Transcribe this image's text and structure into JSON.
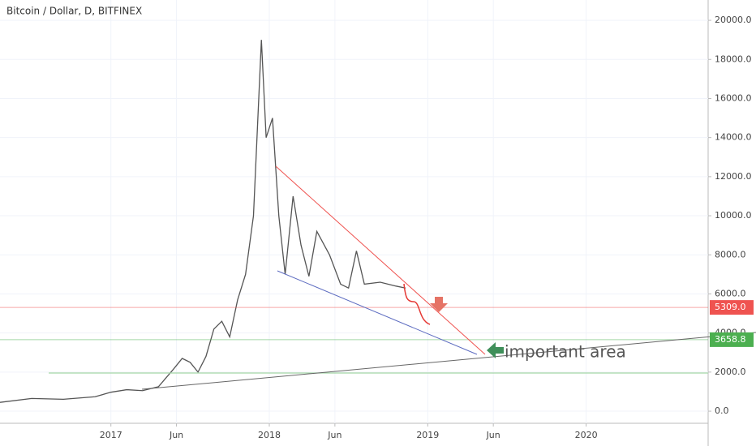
{
  "chart_data": {
    "type": "line",
    "title": "Bitcoin / Dollar, D, BITFINEX",
    "annotation": "important area",
    "color": "#555555",
    "x": [
      2016.3,
      2016.5,
      2016.7,
      2016.9,
      2017.0,
      2017.1,
      2017.2,
      2017.3,
      2017.4,
      2017.45,
      2017.5,
      2017.55,
      2017.6,
      2017.65,
      2017.7,
      2017.75,
      2017.8,
      2017.85,
      2017.9,
      2017.95,
      2017.98,
      2018.02,
      2018.06,
      2018.1,
      2018.15,
      2018.2,
      2018.25,
      2018.3,
      2018.38,
      2018.45,
      2018.5,
      2018.55,
      2018.6,
      2018.7,
      2018.8,
      2018.86
    ],
    "values": [
      450,
      650,
      610,
      740,
      970,
      1100,
      1050,
      1250,
      2200,
      2700,
      2500,
      2000,
      2800,
      4200,
      4600,
      3800,
      5700,
      7000,
      10000,
      19000,
      14000,
      15000,
      10000,
      7000,
      11000,
      8500,
      6900,
      9200,
      8000,
      6500,
      6300,
      8200,
      6500,
      6600,
      6400,
      6300
    ],
    "xlim": [
      2016.3,
      2020.77
    ],
    "ylim": [
      -620,
      21040
    ],
    "xticks": [
      {
        "value": 2017,
        "label": "2017"
      },
      {
        "value": 2017.414,
        "label": "Jun"
      },
      {
        "value": 2018,
        "label": "2018"
      },
      {
        "value": 2018.414,
        "label": "Jun"
      },
      {
        "value": 2019,
        "label": "2019"
      },
      {
        "value": 2019.414,
        "label": "Jun"
      },
      {
        "value": 2020,
        "label": "2020"
      }
    ],
    "yticks": [
      {
        "value": 0,
        "label": "0.0"
      },
      {
        "value": 2000,
        "label": "2000.0"
      },
      {
        "value": 4000,
        "label": "4000.0"
      },
      {
        "value": 6000,
        "label": "6000.0"
      },
      {
        "value": 8000,
        "label": "8000.0"
      },
      {
        "value": 10000,
        "label": "10000.0"
      },
      {
        "value": 12000,
        "label": "12000.0"
      },
      {
        "value": 14000,
        "label": "14000.0"
      },
      {
        "value": 16000,
        "label": "16000.0"
      },
      {
        "value": 18000,
        "label": "18000.0"
      },
      {
        "value": 20000,
        "label": "20000.0"
      }
    ],
    "price_lines": [
      {
        "value": 5309,
        "label": "5309.0",
        "color": "#ef5350"
      },
      {
        "value": 3658.8,
        "label": "3658.8",
        "color": "#4caf50"
      }
    ]
  }
}
